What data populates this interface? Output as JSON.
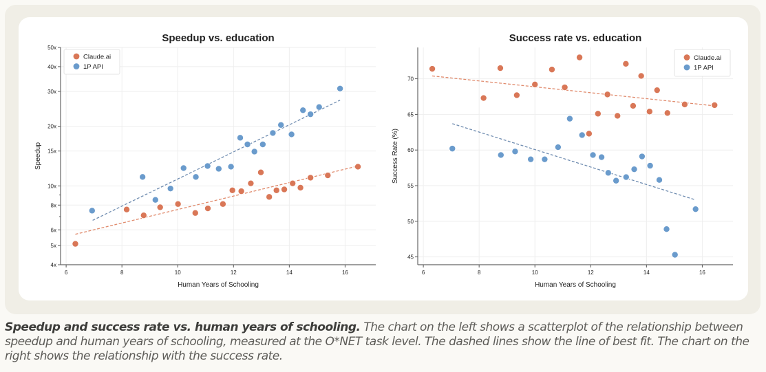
{
  "caption": {
    "bold": "Speedup and success rate vs. human years of schooling.",
    "text": " The chart on the left shows a scatterplot of the relationship between speedup and human years of schooling, measured at the O*NET task level. The dashed lines show the line of best fit. The chart on the right shows the relationship with the success rate."
  },
  "colors": {
    "claude": "#d97757",
    "api": "#6a9bcc",
    "claude_trend": "#e08a6c",
    "api_trend": "#6f8cb0"
  },
  "chart_data": [
    {
      "type": "scatter",
      "title": "Speedup vs. education",
      "xlabel": "Human Years of Schooling",
      "ylabel": "Speedup",
      "yscale": "log",
      "xlim": [
        5.8,
        17.1
      ],
      "ylim": [
        4,
        50
      ],
      "xticks": [
        6,
        8,
        10,
        12,
        14,
        16
      ],
      "yticks": [
        4,
        5,
        6,
        8,
        10,
        15,
        20,
        30,
        40,
        50
      ],
      "ytick_labels": [
        "4x",
        "5x",
        "6x",
        "8x",
        "10x",
        "15x",
        "20x",
        "30x",
        "40x",
        "50x"
      ],
      "legend": "top-left",
      "grid": true,
      "series": [
        {
          "name": "Claude.ai",
          "color_key": "claude",
          "x": [
            6.33,
            8.17,
            8.78,
            9.37,
            10.01,
            10.63,
            11.08,
            11.62,
            11.96,
            12.28,
            12.62,
            12.98,
            13.28,
            13.54,
            13.82,
            14.12,
            14.4,
            14.76,
            15.38,
            16.46
          ],
          "y": [
            5.1,
            7.6,
            7.1,
            7.8,
            8.1,
            7.3,
            7.7,
            8.1,
            9.5,
            9.4,
            10.3,
            11.7,
            8.8,
            9.5,
            9.6,
            10.3,
            9.8,
            11.0,
            11.3,
            12.5
          ],
          "trend": {
            "x": [
              6.33,
              16.46
            ],
            "y": [
              5.7,
              12.6
            ]
          }
        },
        {
          "name": "1P API",
          "color_key": "api",
          "x": [
            6.93,
            8.74,
            9.2,
            9.74,
            10.21,
            10.65,
            11.07,
            11.47,
            11.91,
            12.24,
            12.5,
            12.75,
            13.05,
            13.41,
            13.7,
            14.08,
            14.49,
            14.76,
            15.07,
            15.82
          ],
          "y": [
            7.5,
            11.1,
            8.5,
            9.7,
            12.3,
            11.1,
            12.6,
            12.2,
            12.5,
            17.5,
            16.2,
            14.9,
            16.2,
            18.5,
            20.3,
            18.2,
            24.1,
            23.0,
            25.0,
            31.0
          ],
          "trend": {
            "x": [
              6.95,
              15.82
            ],
            "y": [
              6.7,
              27.1
            ]
          }
        }
      ]
    },
    {
      "type": "scatter",
      "title": "Success rate vs. education",
      "xlabel": "Human Years of Schooling",
      "ylabel": "Success Rate (%)",
      "yscale": "linear",
      "xlim": [
        5.8,
        17.1
      ],
      "ylim": [
        43.9,
        74.4
      ],
      "xticks": [
        6,
        8,
        10,
        12,
        14,
        16
      ],
      "yticks": [
        45,
        50,
        55,
        60,
        65,
        70
      ],
      "ytick_labels": [
        "45",
        "50",
        "55",
        "60",
        "65",
        "70"
      ],
      "legend": "top-right",
      "grid": true,
      "series": [
        {
          "name": "Claude.ai",
          "color_key": "claude",
          "x": [
            6.32,
            8.16,
            8.76,
            9.35,
            10.0,
            10.61,
            11.07,
            11.6,
            11.94,
            12.26,
            12.6,
            12.96,
            13.26,
            13.52,
            13.81,
            14.11,
            14.38,
            14.75,
            15.37,
            16.44
          ],
          "y": [
            71.4,
            67.3,
            71.5,
            67.7,
            69.2,
            71.3,
            68.8,
            73.0,
            62.3,
            65.1,
            67.8,
            64.8,
            72.1,
            66.2,
            70.4,
            65.4,
            68.4,
            65.2,
            66.4,
            66.3
          ],
          "trend": {
            "x": [
              6.32,
              16.44
            ],
            "y": [
              70.4,
              66.2
            ]
          }
        },
        {
          "name": "1P API",
          "color_key": "api",
          "x": [
            7.04,
            8.78,
            9.29,
            9.85,
            10.35,
            10.83,
            11.25,
            11.69,
            12.08,
            12.39,
            12.63,
            12.91,
            13.27,
            13.56,
            13.84,
            14.13,
            14.46,
            14.72,
            15.02,
            15.76
          ],
          "y": [
            60.2,
            59.3,
            59.8,
            58.7,
            58.7,
            60.4,
            64.4,
            62.1,
            59.3,
            59.0,
            56.8,
            55.7,
            56.2,
            57.3,
            59.1,
            57.8,
            55.8,
            48.9,
            45.3,
            51.7
          ],
          "trend": {
            "x": [
              7.04,
              15.76
            ],
            "y": [
              63.7,
              53.0
            ]
          }
        }
      ]
    }
  ]
}
